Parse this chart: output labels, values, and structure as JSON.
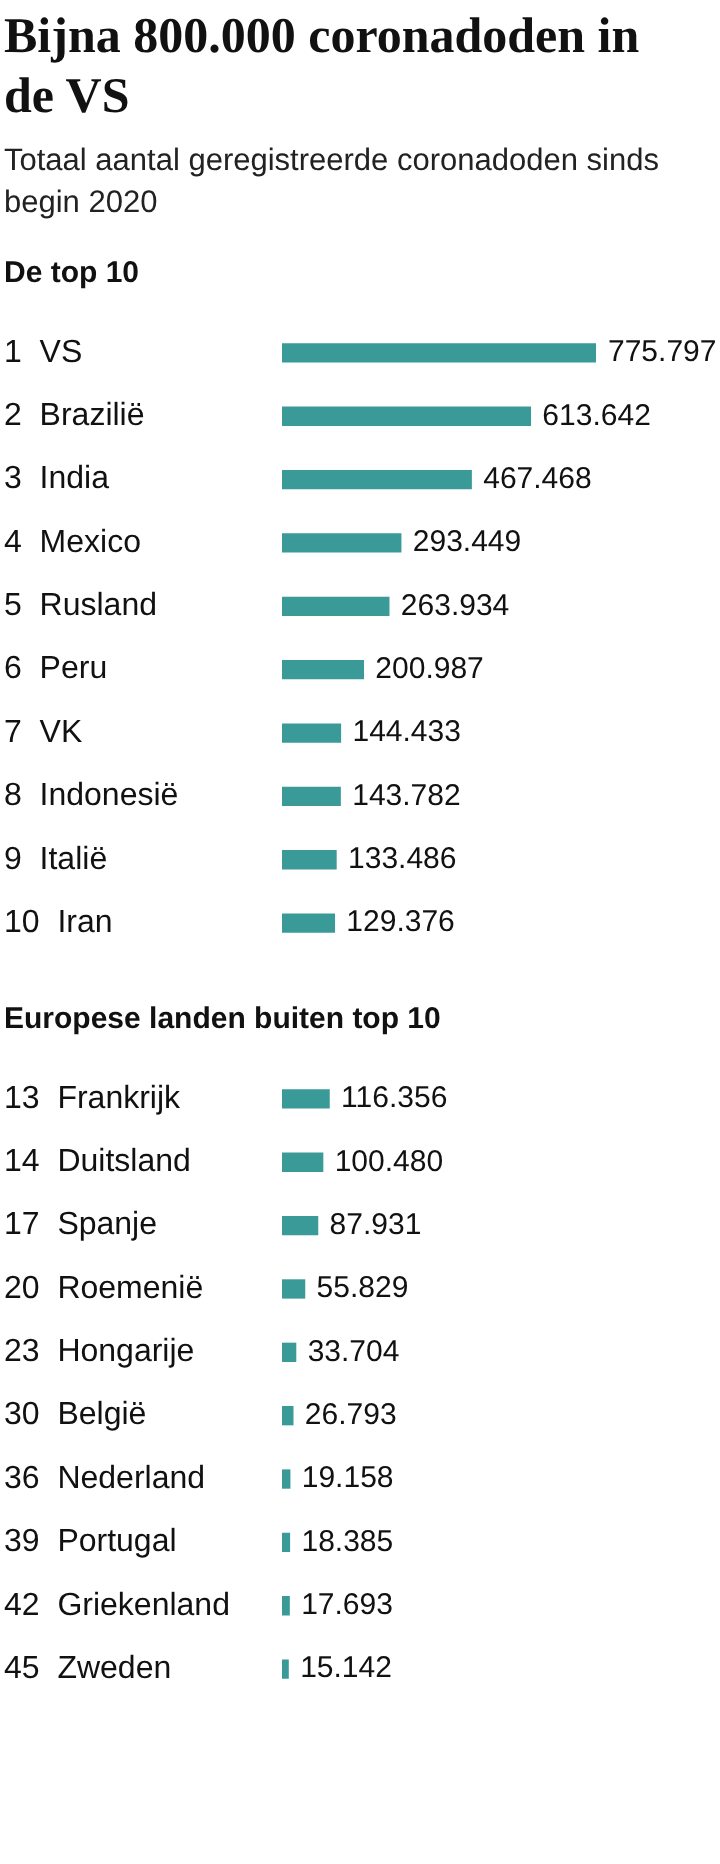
{
  "chart_data": [
    {
      "type": "other",
      "title": "Bijna 800.000 coronadoden in de VS",
      "subtitle": "Totaal aantal geregistreerde coronadoden sinds begin 2020"
    },
    {
      "type": "bar",
      "orientation": "horizontal",
      "title": "De top 10",
      "color": "#3a9a98",
      "data_labels": true,
      "categories": [
        "1  VS",
        "2  Brazilië",
        "3  India",
        "4  Mexico",
        "5  Rusland",
        "6  Peru",
        "7  VK",
        "8  Indonesië",
        "9  Italië",
        "10  Iran"
      ],
      "values": [
        775797,
        613642,
        467468,
        293449,
        263934,
        200987,
        144433,
        143782,
        133486,
        129376
      ],
      "value_labels": [
        "775.797",
        "613.642",
        "467.468",
        "293.449",
        "263.934",
        "200.987",
        "144.433",
        "143.782",
        "133.486",
        "129.376"
      ]
    },
    {
      "type": "bar",
      "orientation": "horizontal",
      "title": "Europese landen buiten top 10",
      "color": "#3a9a98",
      "data_labels": true,
      "categories": [
        "13  Frankrijk",
        "14  Duitsland",
        "17  Spanje",
        "20  Roemenië",
        "23  Hongarije",
        "30  België",
        "36  Nederland",
        "39  Portugal",
        "42  Griekenland",
        "45  Zweden"
      ],
      "values": [
        116356,
        100480,
        87931,
        55829,
        33704,
        26793,
        19158,
        18385,
        17693,
        15142
      ],
      "value_labels": [
        "116.356",
        "100.480",
        "87.931",
        "55.829",
        "33.704",
        "26.793",
        "19.158",
        "18.385",
        "17.693",
        "15.142"
      ]
    }
  ]
}
